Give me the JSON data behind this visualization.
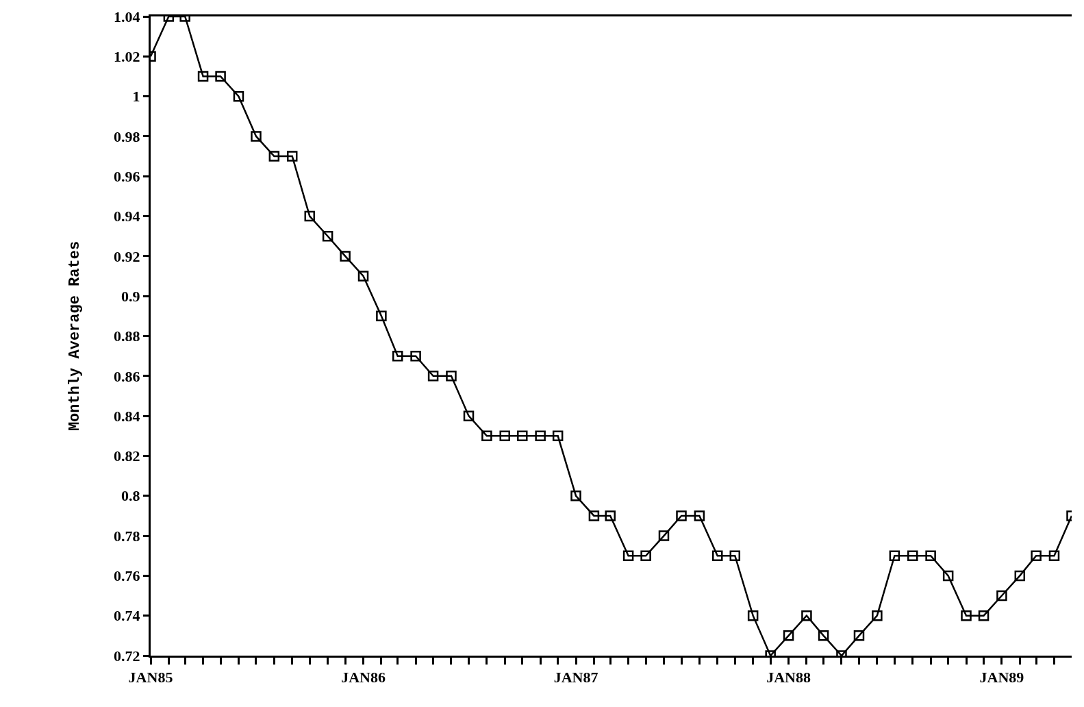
{
  "chart_data": {
    "type": "line",
    "ylabel": "Monthly Average Rates",
    "x": [
      "1985-01",
      "1985-02",
      "1985-03",
      "1985-04",
      "1985-05",
      "1985-06",
      "1985-07",
      "1985-08",
      "1985-09",
      "1985-10",
      "1985-11",
      "1985-12",
      "1986-01",
      "1986-02",
      "1986-03",
      "1986-04",
      "1986-05",
      "1986-06",
      "1986-07",
      "1986-08",
      "1986-09",
      "1986-10",
      "1986-11",
      "1986-12",
      "1987-01",
      "1987-02",
      "1987-03",
      "1987-04",
      "1987-05",
      "1987-06",
      "1987-07",
      "1987-08",
      "1987-09",
      "1987-10",
      "1987-11",
      "1987-12",
      "1988-01",
      "1988-02",
      "1988-03",
      "1988-04",
      "1988-05",
      "1988-06",
      "1988-07",
      "1988-08",
      "1988-09",
      "1988-10",
      "1988-11",
      "1988-12",
      "1989-01",
      "1989-02",
      "1989-03",
      "1989-04",
      "1989-05"
    ],
    "series": [
      {
        "color": "#000000",
        "values": [
          1.02,
          1.04,
          1.04,
          1.01,
          1.01,
          1.0,
          0.98,
          0.97,
          0.97,
          0.94,
          0.93,
          0.92,
          0.91,
          0.89,
          0.87,
          0.87,
          0.86,
          0.86,
          0.84,
          0.83,
          0.83,
          0.83,
          0.83,
          0.83,
          0.8,
          0.79,
          0.79,
          0.77,
          0.77,
          0.78,
          0.79,
          0.79,
          0.77,
          0.77,
          0.74,
          0.72,
          0.73,
          0.74,
          0.73,
          0.72,
          0.73,
          0.74,
          0.77,
          0.77,
          0.77,
          0.76,
          0.74,
          0.74,
          0.75,
          0.76,
          0.77,
          0.77,
          0.79
        ]
      }
    ],
    "xlim": [
      "1985-01",
      "1989-05"
    ],
    "xticks": [
      {
        "value": "1985-01",
        "label": "JAN85"
      },
      {
        "value": "1985-02",
        "label": null
      },
      {
        "value": "1985-03",
        "label": null
      },
      {
        "value": "1985-04",
        "label": null
      },
      {
        "value": "1985-05",
        "label": null
      },
      {
        "value": "1985-06",
        "label": null
      },
      {
        "value": "1985-07",
        "label": null
      },
      {
        "value": "1985-08",
        "label": null
      },
      {
        "value": "1985-09",
        "label": null
      },
      {
        "value": "1985-10",
        "label": null
      },
      {
        "value": "1985-11",
        "label": null
      },
      {
        "value": "1985-12",
        "label": null
      },
      {
        "value": "1986-01",
        "label": "JAN86"
      },
      {
        "value": "1986-02",
        "label": null
      },
      {
        "value": "1986-03",
        "label": null
      },
      {
        "value": "1986-04",
        "label": null
      },
      {
        "value": "1986-05",
        "label": null
      },
      {
        "value": "1986-06",
        "label": null
      },
      {
        "value": "1986-07",
        "label": null
      },
      {
        "value": "1986-08",
        "label": null
      },
      {
        "value": "1986-09",
        "label": null
      },
      {
        "value": "1986-10",
        "label": null
      },
      {
        "value": "1986-11",
        "label": null
      },
      {
        "value": "1986-12",
        "label": null
      },
      {
        "value": "1987-01",
        "label": "JAN87"
      },
      {
        "value": "1987-02",
        "label": null
      },
      {
        "value": "1987-03",
        "label": null
      },
      {
        "value": "1987-04",
        "label": null
      },
      {
        "value": "1987-05",
        "label": null
      },
      {
        "value": "1987-06",
        "label": null
      },
      {
        "value": "1987-07",
        "label": null
      },
      {
        "value": "1987-08",
        "label": null
      },
      {
        "value": "1987-09",
        "label": null
      },
      {
        "value": "1987-10",
        "label": null
      },
      {
        "value": "1987-11",
        "label": null
      },
      {
        "value": "1987-12",
        "label": null
      },
      {
        "value": "1988-01",
        "label": "JAN88"
      },
      {
        "value": "1988-02",
        "label": null
      },
      {
        "value": "1988-03",
        "label": null
      },
      {
        "value": "1988-04",
        "label": null
      },
      {
        "value": "1988-05",
        "label": null
      },
      {
        "value": "1988-06",
        "label": null
      },
      {
        "value": "1988-07",
        "label": null
      },
      {
        "value": "1988-08",
        "label": null
      },
      {
        "value": "1988-09",
        "label": null
      },
      {
        "value": "1988-10",
        "label": null
      },
      {
        "value": "1988-11",
        "label": null
      },
      {
        "value": "1988-12",
        "label": null
      },
      {
        "value": "1989-01",
        "label": "JAN89"
      },
      {
        "value": "1989-02",
        "label": null
      },
      {
        "value": "1989-03",
        "label": null
      },
      {
        "value": "1989-04",
        "label": null
      }
    ],
    "ylim": [
      0.72,
      1.04
    ],
    "yticks": [
      0.72,
      0.74,
      0.76,
      0.78,
      0.8,
      0.82,
      0.84,
      0.86,
      0.88,
      0.9,
      0.92,
      0.94,
      0.96,
      0.98,
      1,
      1.02,
      1.04
    ],
    "marker": "square",
    "line_style": "solid"
  }
}
